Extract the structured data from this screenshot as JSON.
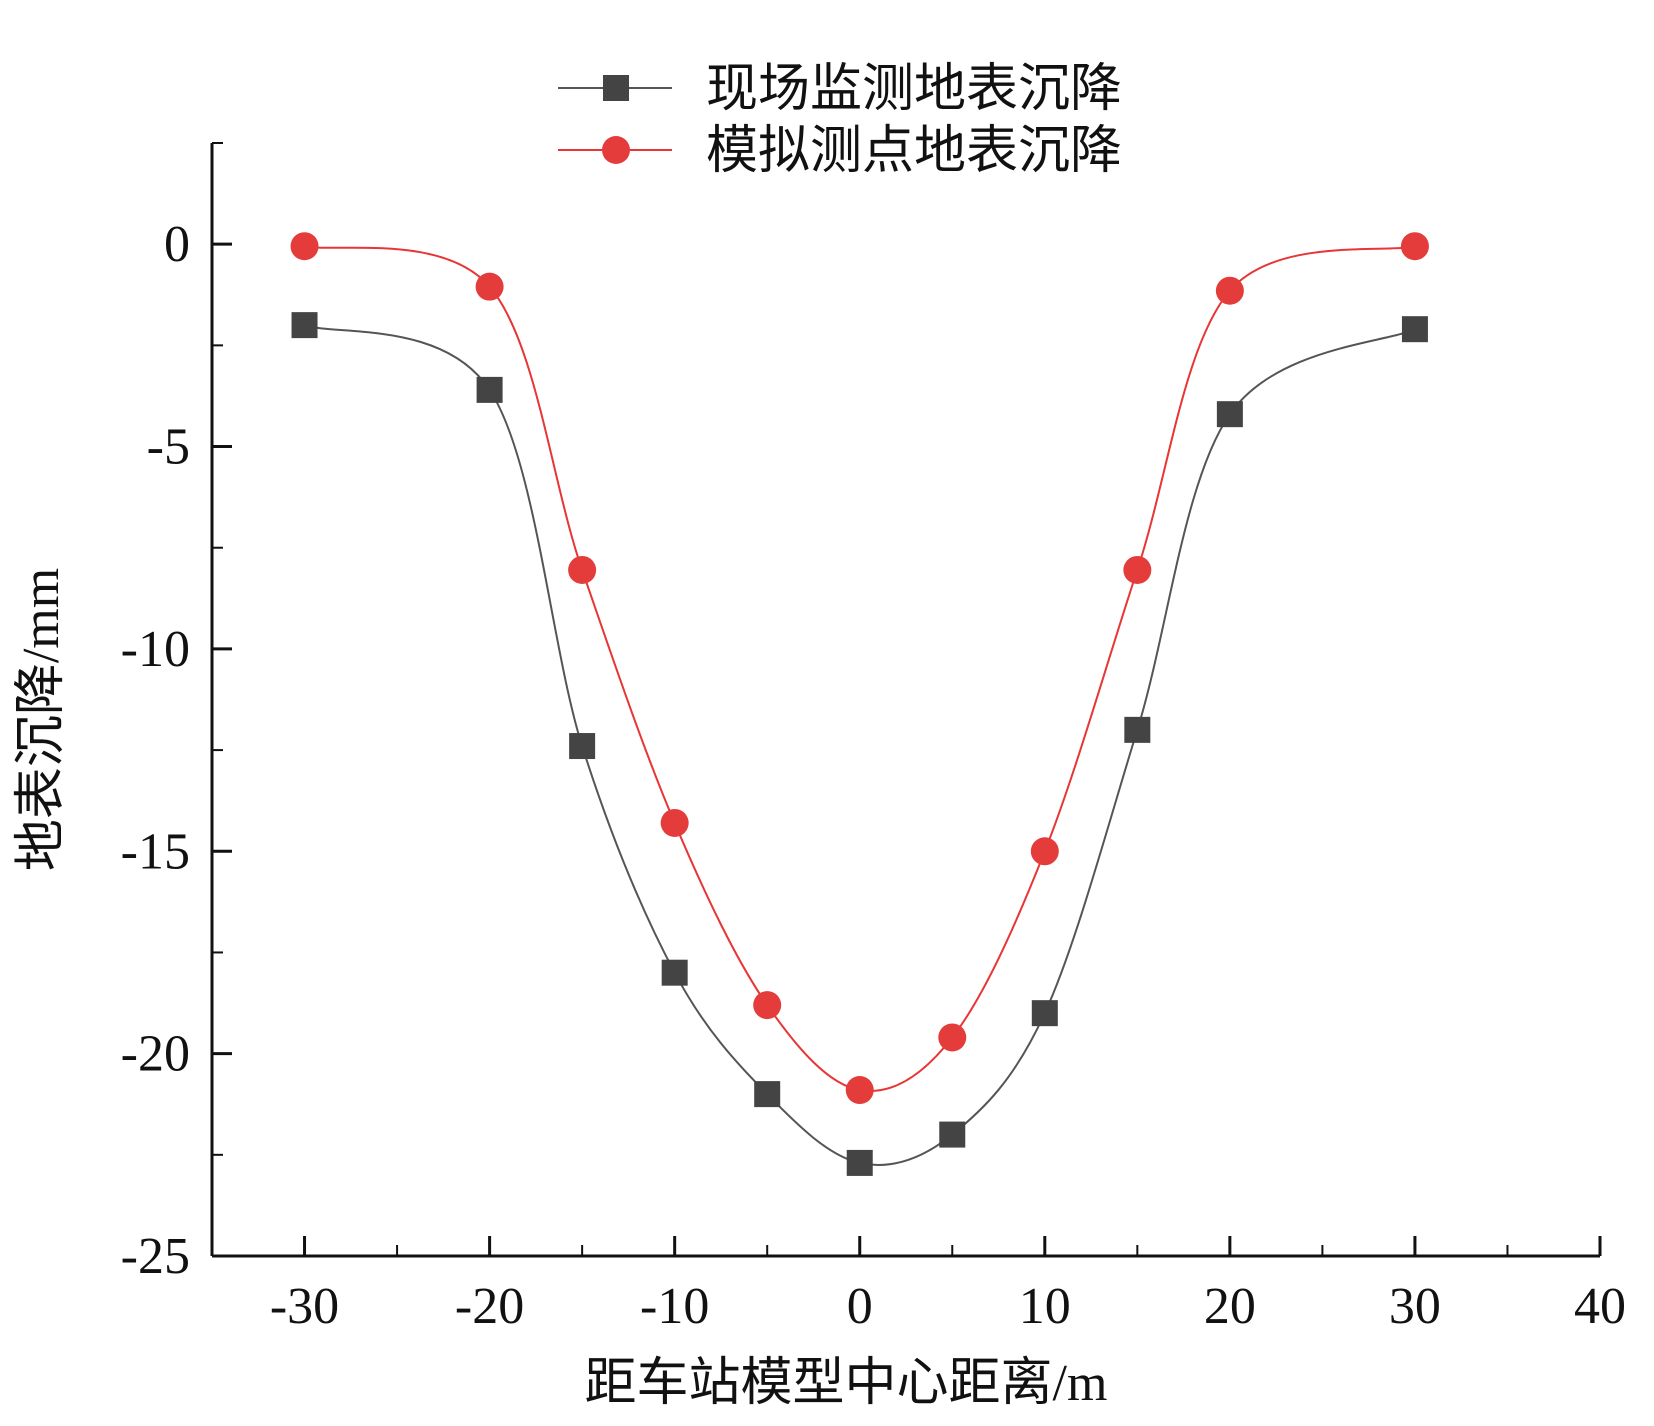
{
  "chart_data": {
    "type": "line",
    "title": "",
    "xlabel": "距车站模型中心距离/m",
    "ylabel": "地表沉降/mm",
    "xlim": [
      -35,
      40
    ],
    "ylim": [
      -25,
      2.5
    ],
    "xticks": [
      -30,
      -20,
      -10,
      0,
      10,
      20,
      30,
      40
    ],
    "yticks": [
      0,
      -5,
      -10,
      -15,
      -20,
      -25
    ],
    "legend_position": "top-center",
    "grid": false,
    "smooth": true,
    "series": [
      {
        "name": "现场监测地表沉降",
        "color": "#555555",
        "marker_color": "#444444",
        "marker": "square",
        "x": [
          -30,
          -20,
          -15,
          -10,
          -5,
          0,
          5,
          10,
          15,
          20,
          30
        ],
        "y": [
          -2.0,
          -3.6,
          -12.4,
          -18.0,
          -21.0,
          -22.7,
          -22.0,
          -19.0,
          -12.0,
          -4.2,
          -2.1
        ]
      },
      {
        "name": "模拟测点地表沉降",
        "color": "#e83535",
        "marker_color": "#e43b3b",
        "marker": "circle",
        "x": [
          -30,
          -20,
          -15,
          -10,
          -5,
          0,
          5,
          10,
          15,
          20,
          30
        ],
        "y": [
          -0.05,
          -1.05,
          -8.05,
          -14.3,
          -18.8,
          -20.9,
          -19.6,
          -15.0,
          -8.05,
          -1.15,
          -0.05
        ]
      }
    ]
  }
}
